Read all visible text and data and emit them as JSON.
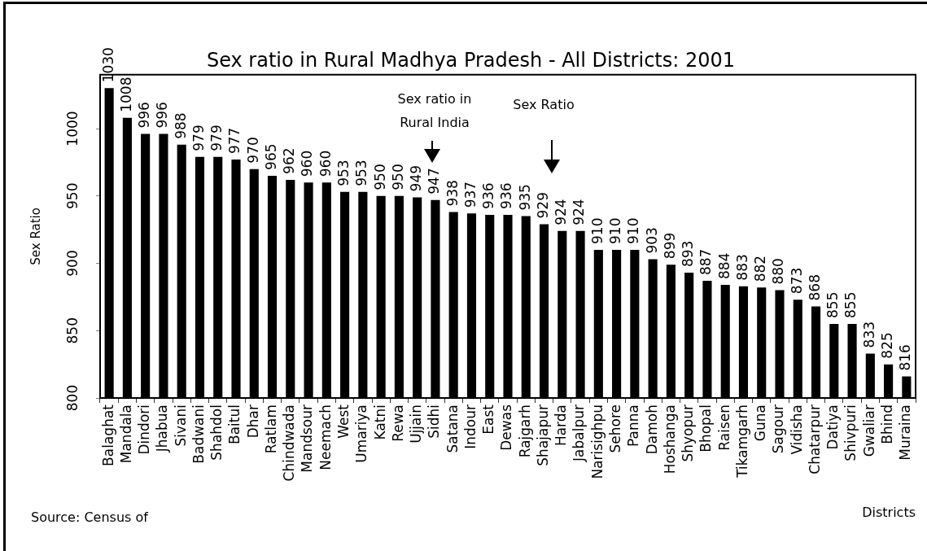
{
  "chart_data": {
    "type": "bar",
    "title": "Sex ratio in Rural Madhya Pradesh - All Districts: 2001",
    "xlabel": "Districts",
    "ylabel": "Sex Ratio",
    "categories": [
      "Balaghat",
      "Mandala",
      "Dindori",
      "Jhabua",
      "Sivani",
      "Badwani",
      "Shahdol",
      "Baitul",
      "Dhar",
      "Ratlam",
      "Chindwada",
      "Mandsour",
      "Neemach",
      "West",
      "Umariya",
      "Katni",
      "Rewa",
      "Ujjain",
      "Sidhi",
      "Satana",
      "Indour",
      "East",
      "Dewas",
      "Rajgarh",
      "Shajapur",
      "Harda",
      "Jabalpur",
      "Narisighpu",
      "Sehore",
      "Panna",
      "Damoh",
      "Hoshanga",
      "Shyopur",
      "Bhopal",
      "Raisen",
      "Tikamgarh",
      "Guna",
      "Sagour",
      "Vidisha",
      "Chatarpur",
      "Datiya",
      "Shivpuri",
      "Gwaliar",
      "Bhind",
      "Muraina"
    ],
    "values": [
      1030,
      1008,
      996,
      996,
      988,
      979,
      979,
      977,
      970,
      965,
      962,
      960,
      960,
      953,
      953,
      950,
      950,
      949,
      947,
      938,
      937,
      936,
      936,
      935,
      929,
      924,
      924,
      910,
      910,
      910,
      903,
      899,
      893,
      887,
      884,
      883,
      882,
      880,
      873,
      868,
      855,
      855,
      833,
      825,
      816
    ],
    "color": "#000000",
    "ylim": [
      800,
      1040
    ],
    "yticks": [
      800,
      850,
      900,
      950,
      1000
    ],
    "data_labels": true,
    "annotations": [
      "Sex ratio in Rural India",
      "Sex Ratio",
      "Source: Census of"
    ]
  }
}
